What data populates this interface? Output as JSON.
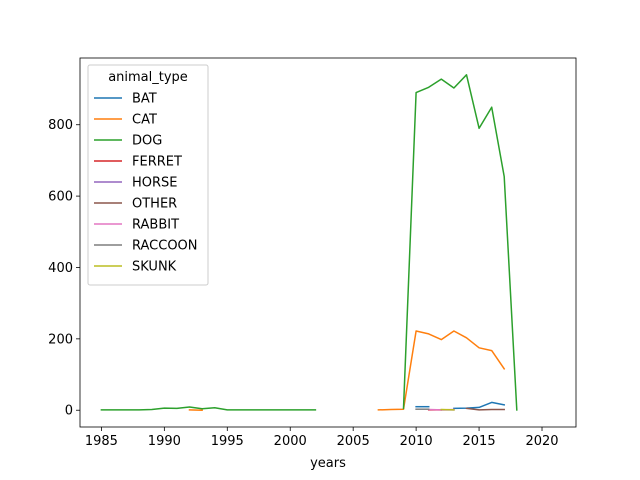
{
  "chart_data": {
    "type": "line",
    "title": "",
    "xlabel": "years",
    "ylabel": "",
    "xlim": [
      1983.3,
      2022.7
    ],
    "ylim": [
      -47,
      987
    ],
    "xticks": [
      1985,
      1990,
      1995,
      2000,
      2005,
      2010,
      2015,
      2020
    ],
    "yticks": [
      0,
      200,
      400,
      600,
      800
    ],
    "grid": false,
    "legend": {
      "title": "animal_type",
      "placement": "top-left"
    },
    "series": [
      {
        "name": "BAT",
        "color": "#1f77b4",
        "segments": [
          [
            [
              2010,
              10
            ],
            [
              2011,
              10
            ]
          ],
          [
            [
              2013,
              5
            ],
            [
              2014,
              6
            ],
            [
              2015,
              8
            ],
            [
              2016,
              22
            ],
            [
              2017,
              15
            ]
          ]
        ]
      },
      {
        "name": "CAT",
        "color": "#ff7f0e",
        "segments": [
          [
            [
              1992,
              1
            ],
            [
              1993,
              0
            ]
          ],
          [
            [
              2007,
              1
            ],
            [
              2008,
              2
            ],
            [
              2009,
              3
            ],
            [
              2010,
              222
            ],
            [
              2011,
              214
            ],
            [
              2012,
              198
            ],
            [
              2013,
              222
            ],
            [
              2014,
              203
            ],
            [
              2015,
              175
            ],
            [
              2016,
              167
            ],
            [
              2017,
              116
            ]
          ]
        ]
      },
      {
        "name": "DOG",
        "color": "#2ca02c",
        "segments": [
          [
            [
              1985,
              1
            ],
            [
              1986,
              1
            ],
            [
              1987,
              1
            ],
            [
              1988,
              1
            ],
            [
              1989,
              2
            ],
            [
              1990,
              6
            ],
            [
              1991,
              5
            ],
            [
              1992,
              9
            ],
            [
              1993,
              4
            ],
            [
              1994,
              7
            ],
            [
              1995,
              1
            ],
            [
              1996,
              1
            ],
            [
              1997,
              1
            ],
            [
              1998,
              1
            ],
            [
              1999,
              1
            ],
            [
              2000,
              1
            ],
            [
              2001,
              1
            ],
            [
              2002,
              1
            ]
          ],
          [
            [
              2009,
              5
            ],
            [
              2010,
              890
            ],
            [
              2011,
              905
            ],
            [
              2012,
              928
            ],
            [
              2013,
              903
            ],
            [
              2014,
              940
            ],
            [
              2015,
              790
            ],
            [
              2016,
              849
            ],
            [
              2017,
              655
            ],
            [
              2018,
              1
            ]
          ]
        ]
      },
      {
        "name": "FERRET",
        "color": "#d62728",
        "segments": [
          [
            [
              2011,
              1
            ],
            [
              2012,
              1
            ]
          ]
        ]
      },
      {
        "name": "HORSE",
        "color": "#9467bd",
        "segments": [
          [
            [
              2012,
              1
            ],
            [
              2013,
              1
            ]
          ]
        ]
      },
      {
        "name": "OTHER",
        "color": "#8c564b",
        "segments": [
          [
            [
              2014,
              5
            ],
            [
              2015,
              1
            ],
            [
              2016,
              2
            ],
            [
              2017,
              2
            ]
          ]
        ]
      },
      {
        "name": "RABBIT",
        "color": "#e377c2",
        "segments": [
          [
            [
              2011,
              2
            ],
            [
              2012,
              1
            ],
            [
              2013,
              2
            ]
          ]
        ]
      },
      {
        "name": "RACCOON",
        "color": "#7f7f7f",
        "segments": [
          [
            [
              2010,
              3
            ],
            [
              2011,
              3
            ]
          ]
        ]
      },
      {
        "name": "SKUNK",
        "color": "#bcbd22",
        "segments": [
          [
            [
              2012,
              2
            ],
            [
              2013,
              1
            ]
          ]
        ]
      }
    ]
  }
}
